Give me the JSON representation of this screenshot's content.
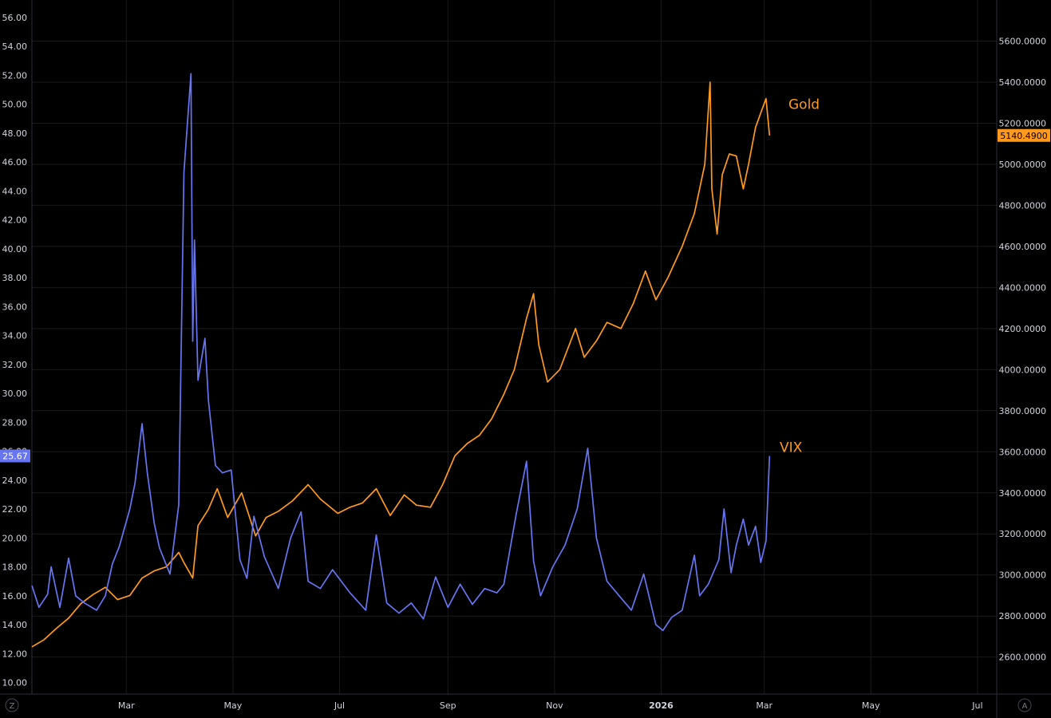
{
  "chart_data": {
    "type": "line",
    "left_axis": {
      "ticks": [
        "10.00",
        "12.00",
        "14.00",
        "16.00",
        "18.00",
        "20.00",
        "22.00",
        "24.00",
        "26.00",
        "28.00",
        "30.00",
        "32.00",
        "34.00",
        "36.00",
        "38.00",
        "40.00",
        "42.00",
        "44.00",
        "46.00",
        "48.00",
        "50.00",
        "52.00",
        "54.00",
        "56.00"
      ],
      "range": [
        9.2,
        57.2
      ]
    },
    "right_axis": {
      "ticks": [
        "2600.0000",
        "2800.0000",
        "3000.0000",
        "3200.0000",
        "3400.0000",
        "3600.0000",
        "3800.0000",
        "4000.0000",
        "4200.0000",
        "4400.0000",
        "4600.0000",
        "4800.0000",
        "5000.0000",
        "5200.0000",
        "5400.0000",
        "5600.0000"
      ],
      "range": [
        2420,
        5800
      ]
    },
    "x_axis": {
      "ticks": [
        "Mar",
        "May",
        "Jul",
        "Sep",
        "Nov",
        "2026",
        "Mar",
        "May",
        "Jul"
      ],
      "tick_dates": [
        "2025-03-01",
        "2025-05-01",
        "2025-07-01",
        "2025-09-01",
        "2025-11-01",
        "2026-01-01",
        "2026-03-01",
        "2026-05-01",
        "2026-07-01"
      ],
      "range": [
        "2025-01-06",
        "2026-07-12"
      ]
    },
    "grid": true,
    "series": [
      {
        "name": "Gold",
        "axis": "right",
        "color": "#ff9a1e",
        "last_value_label": "5140.4900",
        "points": [
          [
            "2025-01-06",
            2650
          ],
          [
            "2025-01-13",
            2685
          ],
          [
            "2025-01-20",
            2740
          ],
          [
            "2025-01-27",
            2790
          ],
          [
            "2025-02-03",
            2860
          ],
          [
            "2025-02-10",
            2905
          ],
          [
            "2025-02-17",
            2940
          ],
          [
            "2025-02-24",
            2880
          ],
          [
            "2025-03-03",
            2900
          ],
          [
            "2025-03-10",
            2985
          ],
          [
            "2025-03-17",
            3020
          ],
          [
            "2025-03-24",
            3040
          ],
          [
            "2025-03-31",
            3110
          ],
          [
            "2025-04-03",
            3060
          ],
          [
            "2025-04-08",
            2985
          ],
          [
            "2025-04-11",
            3240
          ],
          [
            "2025-04-17",
            3320
          ],
          [
            "2025-04-22",
            3420
          ],
          [
            "2025-04-28",
            3280
          ],
          [
            "2025-05-06",
            3400
          ],
          [
            "2025-05-14",
            3190
          ],
          [
            "2025-05-20",
            3280
          ],
          [
            "2025-05-27",
            3310
          ],
          [
            "2025-06-04",
            3360
          ],
          [
            "2025-06-13",
            3440
          ],
          [
            "2025-06-20",
            3370
          ],
          [
            "2025-06-30",
            3300
          ],
          [
            "2025-07-07",
            3330
          ],
          [
            "2025-07-14",
            3350
          ],
          [
            "2025-07-22",
            3420
          ],
          [
            "2025-07-30",
            3290
          ],
          [
            "2025-08-07",
            3390
          ],
          [
            "2025-08-14",
            3340
          ],
          [
            "2025-08-22",
            3330
          ],
          [
            "2025-08-29",
            3440
          ],
          [
            "2025-09-05",
            3580
          ],
          [
            "2025-09-12",
            3640
          ],
          [
            "2025-09-19",
            3680
          ],
          [
            "2025-09-26",
            3760
          ],
          [
            "2025-10-03",
            3880
          ],
          [
            "2025-10-09",
            4000
          ],
          [
            "2025-10-16",
            4250
          ],
          [
            "2025-10-20",
            4370
          ],
          [
            "2025-10-23",
            4120
          ],
          [
            "2025-10-28",
            3940
          ],
          [
            "2025-11-04",
            4000
          ],
          [
            "2025-11-13",
            4200
          ],
          [
            "2025-11-18",
            4060
          ],
          [
            "2025-11-25",
            4140
          ],
          [
            "2025-12-01",
            4230
          ],
          [
            "2025-12-09",
            4200
          ],
          [
            "2025-12-16",
            4320
          ],
          [
            "2025-12-23",
            4480
          ],
          [
            "2025-12-29",
            4340
          ],
          [
            "2026-01-05",
            4450
          ],
          [
            "2026-01-13",
            4600
          ],
          [
            "2026-01-20",
            4760
          ],
          [
            "2026-01-26",
            5000
          ],
          [
            "2026-01-29",
            5400
          ],
          [
            "2026-01-30",
            4880
          ],
          [
            "2026-02-02",
            4660
          ],
          [
            "2026-02-05",
            4950
          ],
          [
            "2026-02-09",
            5050
          ],
          [
            "2026-02-13",
            5040
          ],
          [
            "2026-02-17",
            4880
          ],
          [
            "2026-02-20",
            5000
          ],
          [
            "2026-02-24",
            5180
          ],
          [
            "2026-02-27",
            5250
          ],
          [
            "2026-03-02",
            5320
          ],
          [
            "2026-03-04",
            5140.49
          ]
        ]
      },
      {
        "name": "VIX",
        "axis": "left",
        "color": "#6775f1",
        "last_value_label": "25.67",
        "points": [
          [
            "2025-01-06",
            16.7
          ],
          [
            "2025-01-10",
            15.2
          ],
          [
            "2025-01-15",
            16.1
          ],
          [
            "2025-01-17",
            18.0
          ],
          [
            "2025-01-22",
            15.2
          ],
          [
            "2025-01-27",
            18.6
          ],
          [
            "2025-01-31",
            16.0
          ],
          [
            "2025-02-05",
            15.5
          ],
          [
            "2025-02-12",
            15.0
          ],
          [
            "2025-02-17",
            16.0
          ],
          [
            "2025-02-21",
            18.2
          ],
          [
            "2025-02-25",
            19.4
          ],
          [
            "2025-03-03",
            22.0
          ],
          [
            "2025-03-06",
            23.8
          ],
          [
            "2025-03-10",
            27.9
          ],
          [
            "2025-03-13",
            24.5
          ],
          [
            "2025-03-17",
            21.0
          ],
          [
            "2025-03-20",
            19.3
          ],
          [
            "2025-03-26",
            17.5
          ],
          [
            "2025-03-31",
            22.3
          ],
          [
            "2025-04-03",
            45.3
          ],
          [
            "2025-04-07",
            52.1
          ],
          [
            "2025-04-08",
            33.6
          ],
          [
            "2025-04-09",
            40.6
          ],
          [
            "2025-04-11",
            30.9
          ],
          [
            "2025-04-15",
            33.8
          ],
          [
            "2025-04-17",
            29.5
          ],
          [
            "2025-04-21",
            25.0
          ],
          [
            "2025-04-25",
            24.5
          ],
          [
            "2025-04-30",
            24.7
          ],
          [
            "2025-05-05",
            18.5
          ],
          [
            "2025-05-09",
            17.2
          ],
          [
            "2025-05-13",
            21.5
          ],
          [
            "2025-05-19",
            18.7
          ],
          [
            "2025-05-27",
            16.5
          ],
          [
            "2025-06-03",
            20.0
          ],
          [
            "2025-06-09",
            21.8
          ],
          [
            "2025-06-13",
            17.0
          ],
          [
            "2025-06-20",
            16.5
          ],
          [
            "2025-06-27",
            17.8
          ],
          [
            "2025-07-07",
            16.2
          ],
          [
            "2025-07-16",
            15.0
          ],
          [
            "2025-07-22",
            20.2
          ],
          [
            "2025-07-28",
            15.5
          ],
          [
            "2025-08-04",
            14.8
          ],
          [
            "2025-08-11",
            15.5
          ],
          [
            "2025-08-18",
            14.4
          ],
          [
            "2025-08-25",
            17.3
          ],
          [
            "2025-09-01",
            15.2
          ],
          [
            "2025-09-08",
            16.8
          ],
          [
            "2025-09-15",
            15.4
          ],
          [
            "2025-09-22",
            16.5
          ],
          [
            "2025-09-29",
            16.2
          ],
          [
            "2025-10-03",
            16.8
          ],
          [
            "2025-10-10",
            21.6
          ],
          [
            "2025-10-16",
            25.3
          ],
          [
            "2025-10-20",
            18.4
          ],
          [
            "2025-10-24",
            16.0
          ],
          [
            "2025-10-31",
            18.0
          ],
          [
            "2025-11-07",
            19.5
          ],
          [
            "2025-11-14",
            22.0
          ],
          [
            "2025-11-20",
            26.2
          ],
          [
            "2025-11-25",
            20.0
          ],
          [
            "2025-12-01",
            17.0
          ],
          [
            "2025-12-08",
            16.0
          ],
          [
            "2025-12-15",
            15.0
          ],
          [
            "2025-12-22",
            17.5
          ],
          [
            "2025-12-29",
            14.0
          ],
          [
            "2026-01-02",
            13.6
          ],
          [
            "2026-01-07",
            14.5
          ],
          [
            "2026-01-13",
            15.0
          ],
          [
            "2026-01-20",
            18.8
          ],
          [
            "2026-01-23",
            16.0
          ],
          [
            "2026-01-28",
            16.8
          ],
          [
            "2026-02-03",
            18.5
          ],
          [
            "2026-02-06",
            22.0
          ],
          [
            "2026-02-10",
            17.6
          ],
          [
            "2026-02-13",
            19.5
          ],
          [
            "2026-02-17",
            21.3
          ],
          [
            "2026-02-20",
            19.5
          ],
          [
            "2026-02-24",
            20.8
          ],
          [
            "2026-02-27",
            18.3
          ],
          [
            "2026-03-02",
            19.8
          ],
          [
            "2026-03-04",
            25.67
          ]
        ]
      }
    ],
    "annotations": [
      {
        "text": "Gold",
        "color": "#ff9a1e"
      },
      {
        "text": "VIX",
        "color": "#ff9a1e"
      }
    ],
    "corner_left_label": "Z",
    "corner_right_label": "A",
    "colors": {
      "background": "#000000",
      "grid": "#1a1a1a",
      "axis_text": "#d1d4dc"
    }
  }
}
